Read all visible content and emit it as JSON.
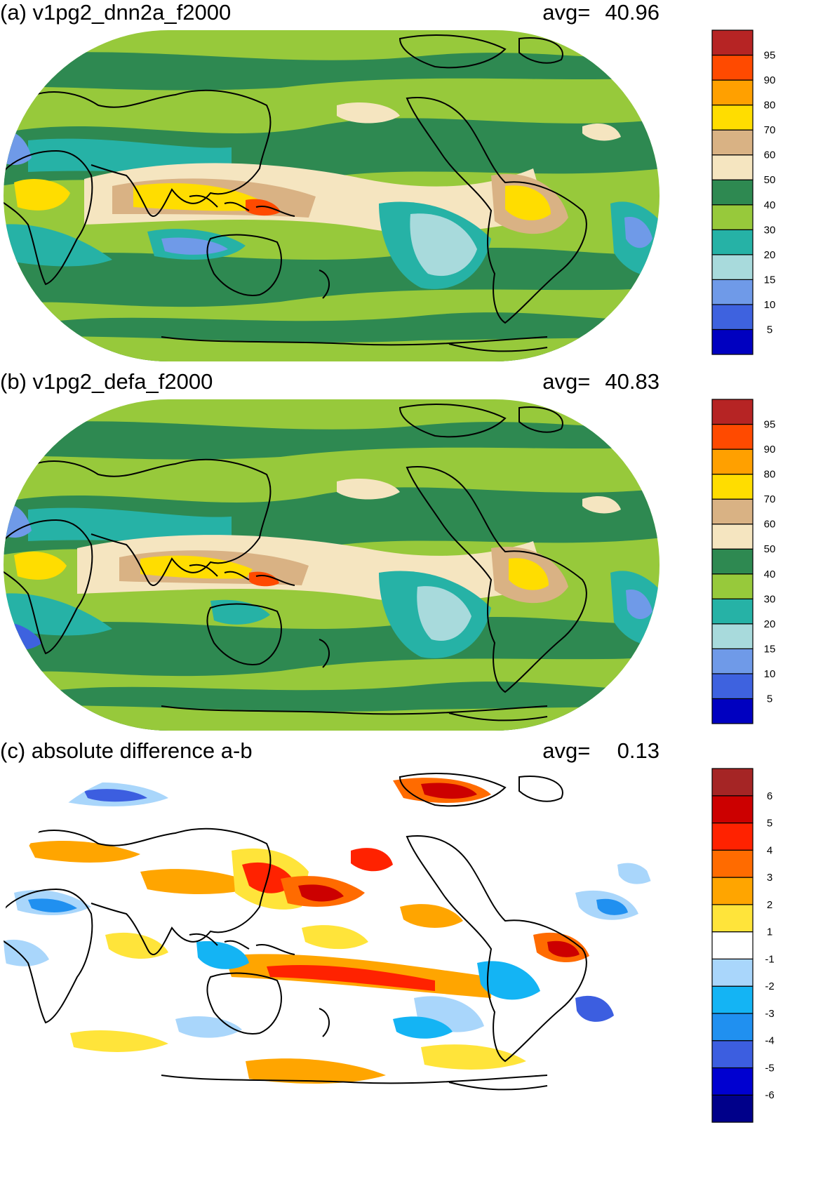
{
  "panels": [
    {
      "title": "(a) v1pg2_dnn2a_f2000",
      "avg_label": "avg=",
      "avg_value": "40.96",
      "colorbar": {
        "colors": [
          "#0000c0",
          "#3e62df",
          "#6f9ae8",
          "#a8dadc",
          "#26b2a6",
          "#97c93b",
          "#2e8951",
          "#f5e5c0",
          "#d9b284",
          "#ffdd00",
          "#ffa000",
          "#ff4a00",
          "#b62424"
        ],
        "labels": [
          "5",
          "10",
          "15",
          "20",
          "30",
          "40",
          "50",
          "60",
          "70",
          "80",
          "90",
          "95"
        ]
      }
    },
    {
      "title": "(b) v1pg2_defa_f2000",
      "avg_label": "avg=",
      "avg_value": "40.83",
      "colorbar": {
        "colors": [
          "#0000c0",
          "#3e62df",
          "#6f9ae8",
          "#a8dadc",
          "#26b2a6",
          "#97c93b",
          "#2e8951",
          "#f5e5c0",
          "#d9b284",
          "#ffdd00",
          "#ffa000",
          "#ff4a00",
          "#b62424"
        ],
        "labels": [
          "5",
          "10",
          "15",
          "20",
          "30",
          "40",
          "50",
          "60",
          "70",
          "80",
          "90",
          "95"
        ]
      }
    },
    {
      "title": "(c) absolute difference a-b",
      "avg_label": "avg=",
      "avg_value": "0.13",
      "colorbar": {
        "colors": [
          "#00008a",
          "#0000d0",
          "#3c5ee0",
          "#2090f0",
          "#14b4f4",
          "#a9d6fb",
          "#ffffff",
          "#ffe43a",
          "#ffa500",
          "#ff6b00",
          "#ff2200",
          "#cc0000",
          "#a52525"
        ],
        "labels": [
          "-6",
          "-5",
          "-4",
          "-3",
          "-2",
          "-1",
          "1",
          "2",
          "3",
          "4",
          "5",
          "6"
        ]
      }
    }
  ]
}
